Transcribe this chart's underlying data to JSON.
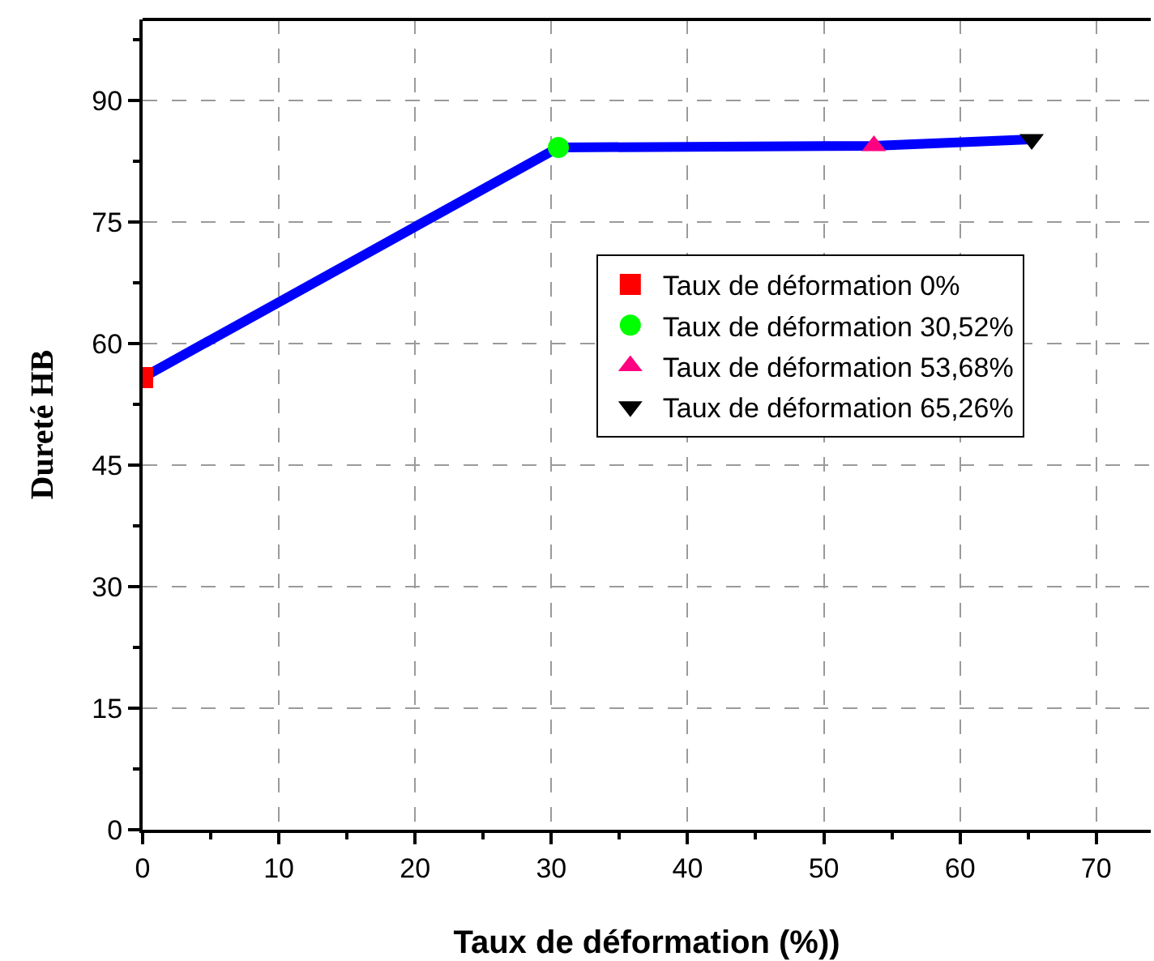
{
  "chart_data": {
    "type": "scatter",
    "xlabel": "Taux de déformation (%))",
    "ylabel": "Dureté HB",
    "xlim": [
      0,
      74
    ],
    "xticks": [
      0,
      10,
      20,
      30,
      40,
      50,
      60,
      70
    ],
    "ylim": [
      0,
      100
    ],
    "yticks": [
      0,
      15,
      30,
      45,
      60,
      75,
      90
    ],
    "grid": true,
    "legend": "right",
    "series": [
      {
        "type": "line",
        "color": "#0000ff",
        "x": [
          0,
          30.52,
          53.68,
          65.26
        ],
        "values": [
          55.8,
          84.2,
          84.4,
          85.2
        ],
        "marker": "none"
      },
      {
        "name": "Taux de déformation 0%",
        "color": "#ff0000",
        "x": [
          0
        ],
        "values": [
          55.8
        ],
        "marker": "square"
      },
      {
        "name": "Taux de déformation 30,52%",
        "color": "#00ff00",
        "x": [
          30.52
        ],
        "values": [
          84.2
        ],
        "marker": "circle"
      },
      {
        "name": "Taux de déformation 53,68%",
        "color": "#ff0080",
        "x": [
          53.68
        ],
        "values": [
          84.4
        ],
        "marker": "triangle"
      },
      {
        "name": "Taux de déformation 65,26%",
        "color": "#000000",
        "x": [
          65.26
        ],
        "values": [
          85.2
        ],
        "marker": "triangle-down"
      }
    ]
  }
}
